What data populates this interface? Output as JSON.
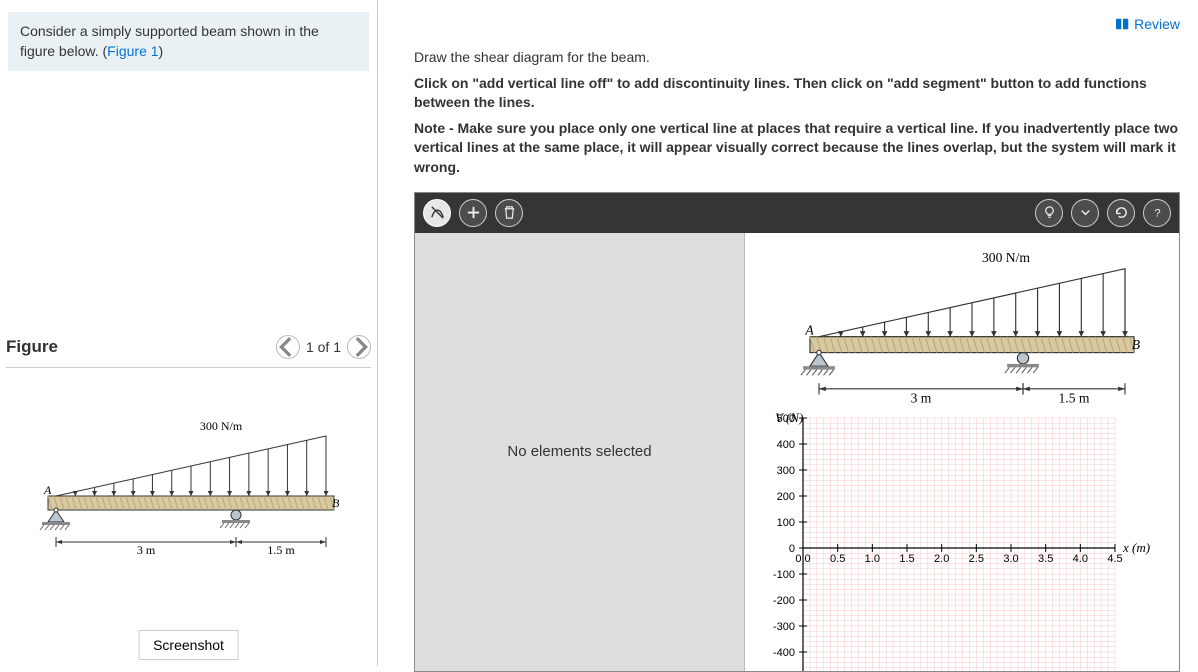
{
  "problem": {
    "text_before": "Consider a simply supported beam shown in the figure below. (",
    "figure_link": "Figure 1",
    "text_after": ")"
  },
  "figure_panel": {
    "title": "Figure",
    "pager": "1 of 1"
  },
  "beam": {
    "load_label": "300 N/m",
    "label_A": "A",
    "label_B": "B",
    "dim1": "3 m",
    "dim2": "1.5 m",
    "beam_color_top": "#d8c9a0",
    "beam_color_bottom": "#b8a77a",
    "hatch_color": "#666666"
  },
  "screenshot_btn": "Screenshot",
  "review": "Review",
  "instructions": {
    "line1": "Draw the shear diagram for the beam.",
    "line2": "Click on \"add vertical line off\" to add discontinuity lines. Then click on \"add segment\" button to add functions between the lines.",
    "line3": "Note - Make sure you place only one vertical line at places that require a vertical line. If you inadvertently place two vertical lines at the same place, it will appear visually correct because the lines overlap, but the system will mark it wrong."
  },
  "drawing": {
    "no_selection": "No elements selected",
    "graph": {
      "y_label": "V (N)",
      "x_label": "x (m)",
      "x_min": 0.0,
      "x_max": 4.5,
      "x_step": 0.5,
      "y_min": -500,
      "y_max": 500,
      "y_step": 100,
      "grid_color": "#f4c7c7",
      "axis_color": "#000000",
      "tick_font_size": 11
    }
  },
  "colors": {
    "link": "#0073cf",
    "toolbar_bg": "#333536"
  }
}
